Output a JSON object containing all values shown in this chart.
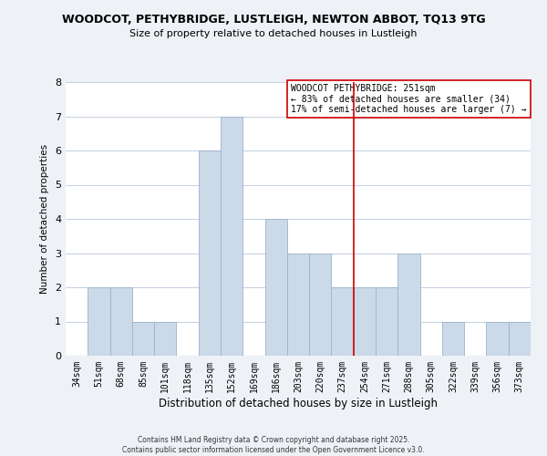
{
  "title": "WOODCOT, PETHYBRIDGE, LUSTLEIGH, NEWTON ABBOT, TQ13 9TG",
  "subtitle": "Size of property relative to detached houses in Lustleigh",
  "xlabel": "Distribution of detached houses by size in Lustleigh",
  "ylabel": "Number of detached properties",
  "bar_color": "#ccd9e8",
  "bar_edge_color": "#99b3cc",
  "categories": [
    "34sqm",
    "51sqm",
    "68sqm",
    "85sqm",
    "101sqm",
    "118sqm",
    "135sqm",
    "152sqm",
    "169sqm",
    "186sqm",
    "203sqm",
    "220sqm",
    "237sqm",
    "254sqm",
    "271sqm",
    "288sqm",
    "305sqm",
    "322sqm",
    "339sqm",
    "356sqm",
    "373sqm"
  ],
  "values": [
    0,
    2,
    2,
    1,
    1,
    0,
    6,
    7,
    0,
    4,
    3,
    3,
    2,
    2,
    2,
    3,
    0,
    1,
    0,
    1,
    1
  ],
  "ylim": [
    0,
    8
  ],
  "yticks": [
    0,
    1,
    2,
    3,
    4,
    5,
    6,
    7,
    8
  ],
  "vline_index": 13,
  "vline_color": "#cc0000",
  "annot_title": "WOODCOT PETHYBRIDGE: 251sqm",
  "annot_line1": "← 83% of detached houses are smaller (34)",
  "annot_line2": "17% of semi-detached houses are larger (7) →",
  "annot_box_fc": "#ffffff",
  "annot_box_ec": "#cc0000",
  "footer1": "Contains HM Land Registry data © Crown copyright and database right 2025.",
  "footer2": "Contains public sector information licensed under the Open Government Licence v3.0.",
  "fig_bg": "#eef2f7",
  "plot_bg": "#ffffff",
  "grid_color": "#c5cfe0"
}
